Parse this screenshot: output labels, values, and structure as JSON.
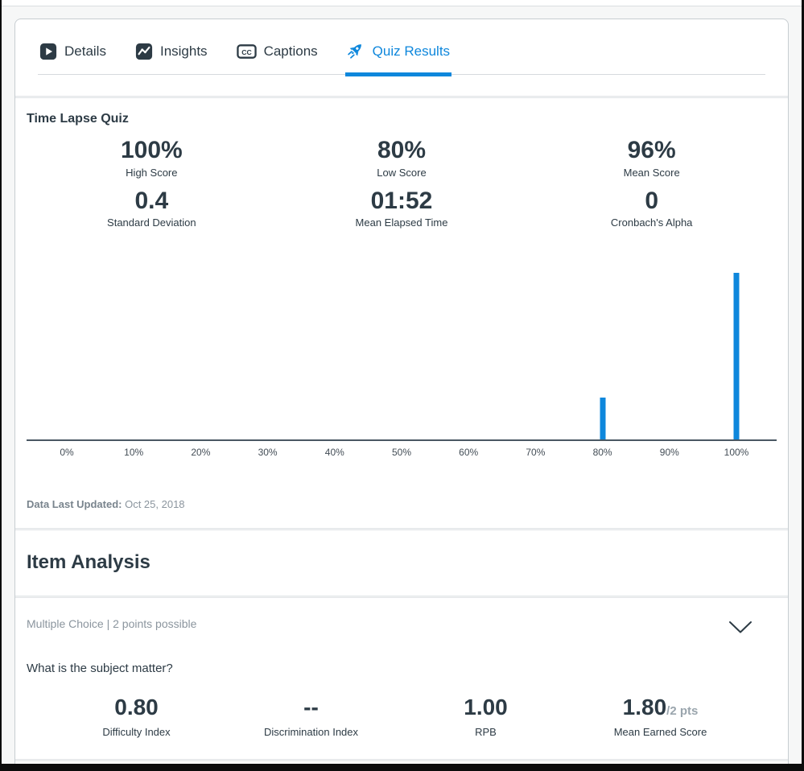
{
  "colors": {
    "accent": "#0E87DC",
    "ink": "#2D3B45",
    "muted_text": "#8B959E",
    "card_border": "#C7CDD1",
    "axis": "#4A5863"
  },
  "tabs": [
    {
      "label": "Details",
      "icon": "play-video-icon",
      "active": false
    },
    {
      "label": "Insights",
      "icon": "trend-line-icon",
      "active": false
    },
    {
      "label": "Captions",
      "icon": "closed-captions-icon",
      "active": false
    },
    {
      "label": "Quiz Results",
      "icon": "rocket-icon",
      "active": true
    }
  ],
  "quiz_results": {
    "title": "Time Lapse Quiz",
    "stats": [
      {
        "value": "100%",
        "label": "High Score"
      },
      {
        "value": "80%",
        "label": "Low Score"
      },
      {
        "value": "96%",
        "label": "Mean Score"
      },
      {
        "value": "0.4",
        "label": "Standard Deviation"
      },
      {
        "value": "01:52",
        "label": "Mean Elapsed Time"
      },
      {
        "value": "0",
        "label": "Cronbach's Alpha"
      }
    ],
    "last_updated_label": "Data Last Updated:",
    "last_updated_value": "Oct 25, 2018"
  },
  "chart_data": {
    "type": "bar",
    "title": "",
    "xlabel": "",
    "ylabel": "",
    "x_ticks": [
      "0%",
      "10%",
      "20%",
      "30%",
      "40%",
      "50%",
      "60%",
      "70%",
      "80%",
      "90%",
      "100%"
    ],
    "x_range": [
      0,
      100
    ],
    "y_range": [
      0,
      4
    ],
    "grid": false,
    "legend": false,
    "bar_color": "#0E87DC",
    "bars": [
      {
        "score": 80,
        "count": 1
      },
      {
        "score": 100,
        "count": 4
      }
    ]
  },
  "item_analysis": {
    "heading": "Item Analysis",
    "question": {
      "meta": "Multiple Choice | 2 points possible",
      "text": "What is the subject matter?",
      "stats": [
        {
          "value": "0.80",
          "suffix": "",
          "label": "Difficulty Index"
        },
        {
          "value": "--",
          "suffix": "",
          "label": "Discrimination Index"
        },
        {
          "value": "1.00",
          "suffix": "",
          "label": "RPB"
        },
        {
          "value": "1.80",
          "suffix": "/2 pts",
          "label": "Mean Earned Score"
        }
      ]
    }
  }
}
